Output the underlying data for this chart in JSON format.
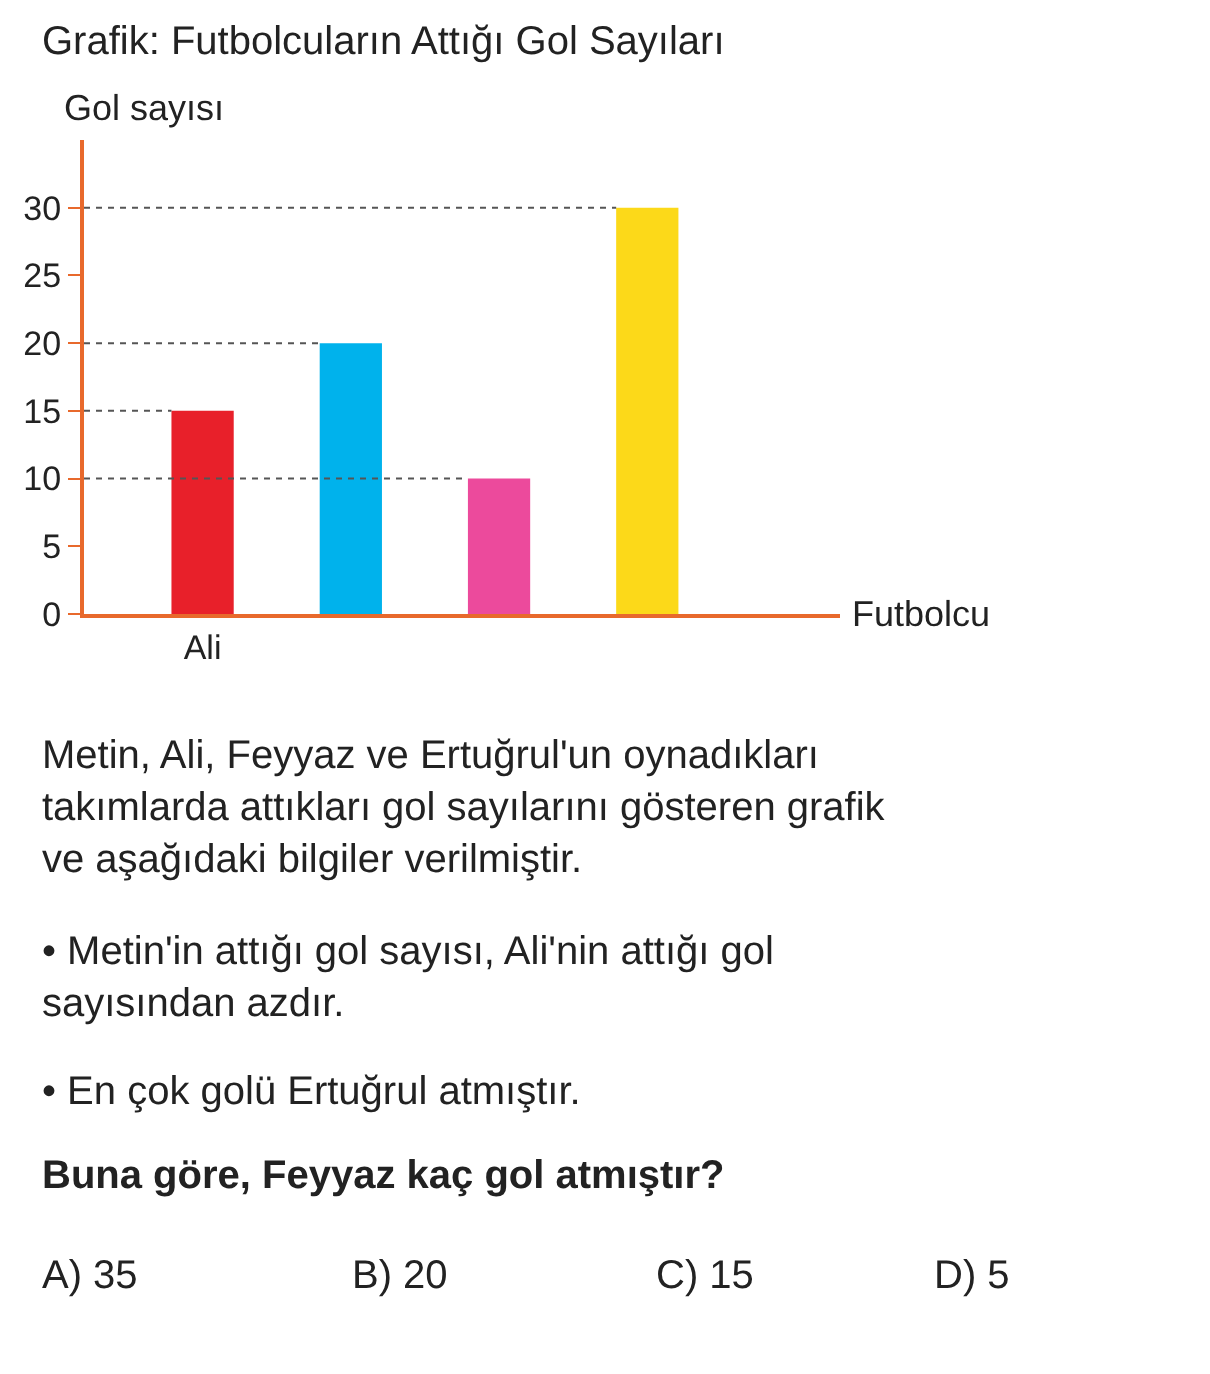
{
  "chart_data": {
    "type": "bar",
    "title": "Grafik: Futbolcuların Attığı Gol Sayıları",
    "xlabel": "Futbolcu",
    "ylabel": "Gol sayısı",
    "categories": [
      "Ali",
      null,
      null,
      null
    ],
    "values": [
      15,
      20,
      10,
      30
    ],
    "colors": [
      "#e8202a",
      "#00b2ec",
      "#ec4a9c",
      "#fcd919"
    ],
    "ylim": [
      0,
      35
    ],
    "yticks": [
      0,
      5,
      10,
      15,
      20,
      25,
      30
    ],
    "ref_lines": [
      {
        "axis": "y",
        "value": 15,
        "line_style": "dotted",
        "color": "#555555"
      },
      {
        "axis": "y",
        "value": 20,
        "line_style": "dotted",
        "color": "#555555"
      },
      {
        "axis": "y",
        "value": 10,
        "line_style": "dotted",
        "color": "#555555"
      },
      {
        "axis": "y",
        "value": 30,
        "line_style": "dotted",
        "color": "#555555"
      }
    ],
    "annotations": [
      "Metin, Ali, Feyyaz ve Ertuğrul'un oynadıkları takımlarda attıkları gol sayılarını gösteren grafik ve aşağıdaki bilgiler verilmiştir.",
      "• Metin'in attığı gol sayısı, Ali'nin attığı gol sayısından azdır.",
      "• En çok golü Ertuğrul atmıştır.",
      "Buna göre, Feyyaz kaç gol atmıştır?",
      "A) 35",
      "B) 20",
      "C) 15",
      "D) 5"
    ]
  }
}
